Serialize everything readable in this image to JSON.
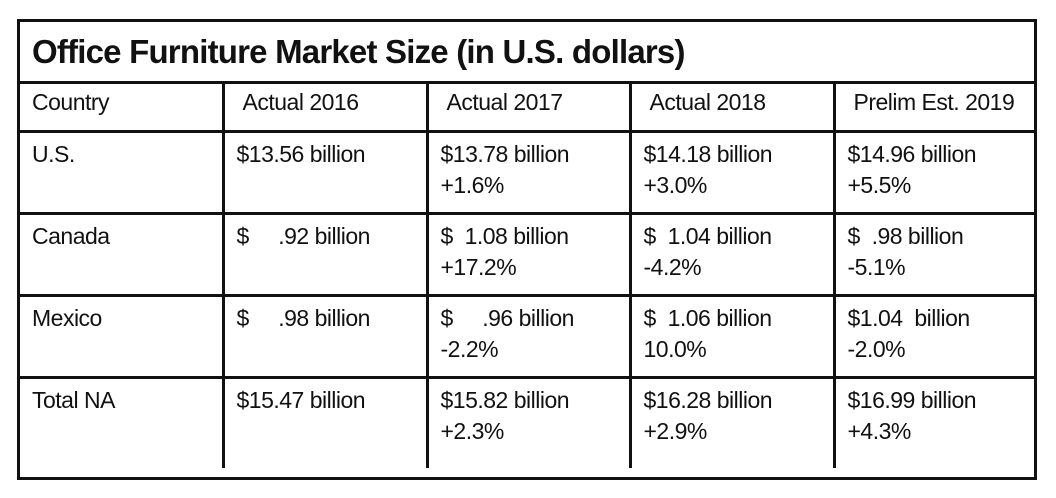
{
  "title": "Office Furniture Market Size (in U.S. dollars)",
  "header": {
    "country": "Country",
    "columns": [
      "Actual 2016",
      "Actual 2017",
      "Actual 2018",
      "Prelim Est. 2019"
    ]
  },
  "rows": [
    {
      "country": "U.S.",
      "cells": [
        {
          "value": "$13.56 billion",
          "change": ""
        },
        {
          "value": "$13.78 billion",
          "change": "+1.6%"
        },
        {
          "value": "$14.18 billion",
          "change": "+3.0%"
        },
        {
          "value": "$14.96 billion",
          "change": "+5.5%"
        }
      ]
    },
    {
      "country": "Canada",
      "cells": [
        {
          "value": "$     .92 billion",
          "change": ""
        },
        {
          "value": "$  1.08 billion",
          "change": "+17.2%"
        },
        {
          "value": "$  1.04 billion",
          "change": "-4.2%"
        },
        {
          "value": "$  .98 billion",
          "change": "-5.1%"
        }
      ]
    },
    {
      "country": "Mexico",
      "cells": [
        {
          "value": "$     .98 billion",
          "change": ""
        },
        {
          "value": "$     .96 billion",
          "change": "-2.2%"
        },
        {
          "value": "$  1.06 billion",
          "change": "10.0%"
        },
        {
          "value": "$1.04  billion",
          "change": "-2.0%"
        }
      ]
    },
    {
      "country": "Total NA",
      "cells": [
        {
          "value": "$15.47 billion",
          "change": ""
        },
        {
          "value": "$15.82 billion",
          "change": "+2.3%"
        },
        {
          "value": "$16.28 billion",
          "change": "+2.9%"
        },
        {
          "value": "$16.99 billion",
          "change": "+4.3%"
        }
      ]
    }
  ]
}
